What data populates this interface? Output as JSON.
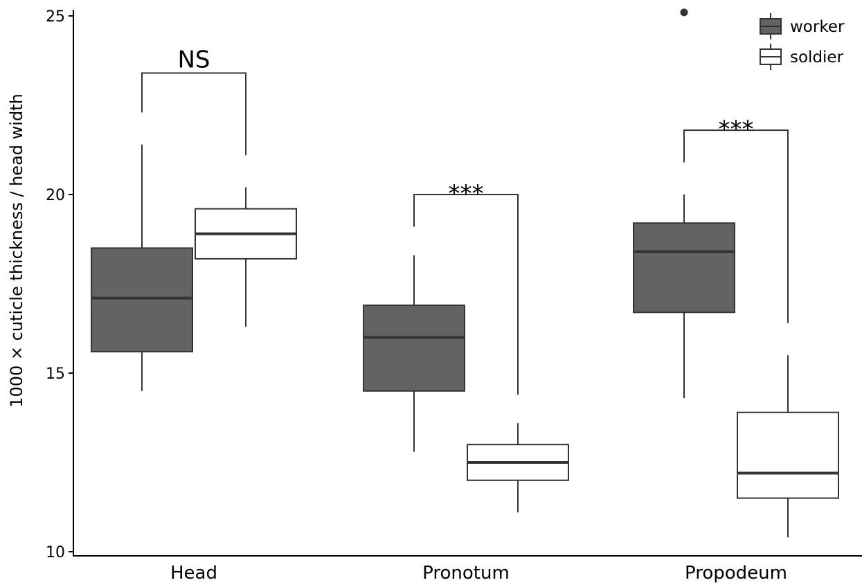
{
  "chart_data": {
    "type": "boxplot",
    "title": "",
    "xlabel": "",
    "ylabel": "1000 × cuticle thickness / head width",
    "ylim": [
      10,
      25
    ],
    "yticks": [
      10,
      15,
      20,
      25
    ],
    "grid": false,
    "legend_position": "top-right",
    "categories": [
      "Head",
      "Pronotum",
      "Propodeum"
    ],
    "series": [
      {
        "name": "worker",
        "color": "#636363",
        "boxes": [
          {
            "category": "Head",
            "lower_whisker": 14.5,
            "q1": 15.6,
            "median": 17.1,
            "q3": 18.5,
            "upper_whisker": 21.4,
            "outliers": []
          },
          {
            "category": "Pronotum",
            "lower_whisker": 12.8,
            "q1": 14.5,
            "median": 16.0,
            "q3": 16.9,
            "upper_whisker": 18.3,
            "outliers": []
          },
          {
            "category": "Propodeum",
            "lower_whisker": 14.3,
            "q1": 16.7,
            "median": 18.4,
            "q3": 19.2,
            "upper_whisker": 20.0,
            "outliers": [
              25.1
            ]
          }
        ]
      },
      {
        "name": "soldier",
        "color": "#ffffff",
        "boxes": [
          {
            "category": "Head",
            "lower_whisker": 16.3,
            "q1": 18.2,
            "median": 18.9,
            "q3": 19.6,
            "upper_whisker": 20.2,
            "outliers": []
          },
          {
            "category": "Pronotum",
            "lower_whisker": 11.1,
            "q1": 12.0,
            "median": 12.5,
            "q3": 13.0,
            "upper_whisker": 13.6,
            "outliers": []
          },
          {
            "category": "Propodeum",
            "lower_whisker": 10.4,
            "q1": 11.5,
            "median": 12.2,
            "q3": 13.9,
            "upper_whisker": 15.5,
            "outliers": []
          }
        ]
      }
    ],
    "significance": [
      {
        "category": "Head",
        "label": "NS",
        "bracket_y": 23.4,
        "left_drop_to": 22.3,
        "right_drop_to": 21.1
      },
      {
        "category": "Pronotum",
        "label": "***",
        "bracket_y": 20.0,
        "left_drop_to": 19.1,
        "right_drop_to": 14.4
      },
      {
        "category": "Propodeum",
        "label": "***",
        "bracket_y": 21.8,
        "left_drop_to": 20.9,
        "right_drop_to": 16.4
      }
    ]
  }
}
